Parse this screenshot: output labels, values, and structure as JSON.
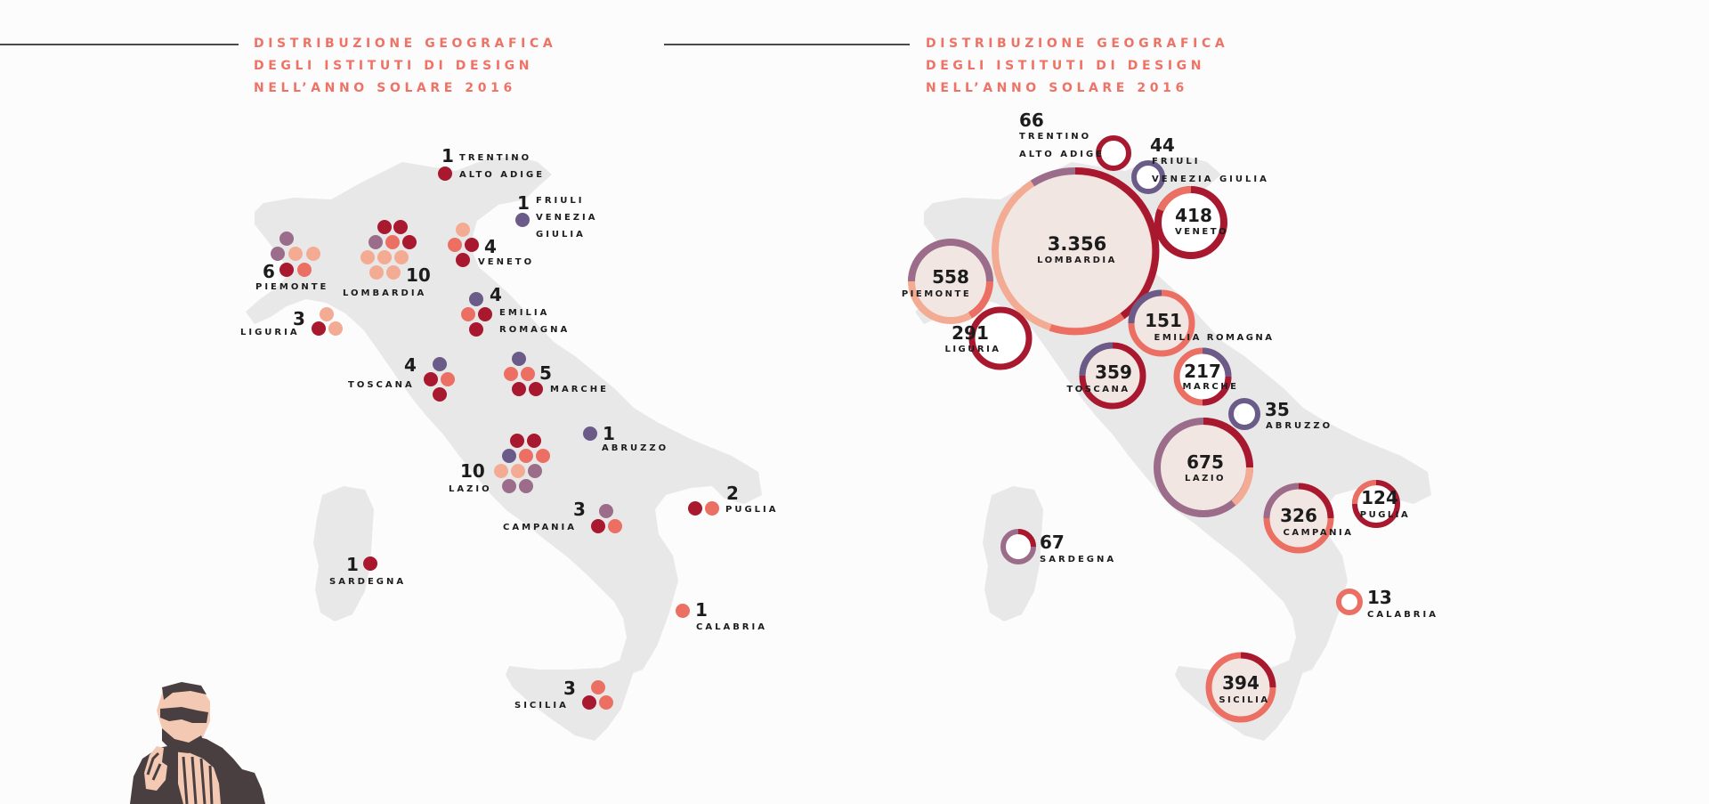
{
  "left_map": {
    "title_lines": [
      "DISTRIBUZIONE GEOGRAFICA",
      "DEGLI ISTITUTI DI DESIGN",
      "NELL’ANNO SOLARE 2016"
    ],
    "regions": [
      {
        "id": "trentino",
        "count": "1",
        "label_lines": [
          "TRENTINO",
          "ALTO ADIGE"
        ]
      },
      {
        "id": "friuli",
        "count": "1",
        "label_lines": [
          "FRIULI",
          "VENEZIA",
          "GIULIA"
        ]
      },
      {
        "id": "piemonte",
        "count": "6",
        "label_lines": [
          "PIEMONTE"
        ]
      },
      {
        "id": "lombardia",
        "count": "10",
        "label_lines": [
          "LOMBARDIA"
        ]
      },
      {
        "id": "veneto",
        "count": "4",
        "label_lines": [
          "VENETO"
        ]
      },
      {
        "id": "liguria",
        "count": "3",
        "label_lines": [
          "LIGURIA"
        ]
      },
      {
        "id": "emilia",
        "count": "4",
        "label_lines": [
          "EMILIA",
          "ROMAGNA"
        ]
      },
      {
        "id": "toscana",
        "count": "4",
        "label_lines": [
          "TOSCANA"
        ]
      },
      {
        "id": "marche",
        "count": "5",
        "label_lines": [
          "MARCHE"
        ]
      },
      {
        "id": "abruzzo",
        "count": "1",
        "label_lines": [
          "ABRUZZO"
        ]
      },
      {
        "id": "lazio",
        "count": "10",
        "label_lines": [
          "LAZIO"
        ]
      },
      {
        "id": "puglia",
        "count": "2",
        "label_lines": [
          "PUGLIA"
        ]
      },
      {
        "id": "campania",
        "count": "3",
        "label_lines": [
          "CAMPANIA"
        ]
      },
      {
        "id": "sardegna",
        "count": "1",
        "label_lines": [
          "SARDEGNA"
        ]
      },
      {
        "id": "calabria",
        "count": "1",
        "label_lines": [
          "CALABRIA"
        ]
      },
      {
        "id": "sicilia",
        "count": "3",
        "label_lines": [
          "SICILIA"
        ]
      }
    ]
  },
  "right_map": {
    "title_lines": [
      "DISTRIBUZIONE GEOGRAFICA",
      "DEGLI ISTITUTI DI DESIGN",
      "NELL’ANNO SOLARE 2016"
    ],
    "regions": [
      {
        "id": "trentino",
        "value": "66",
        "label_lines": [
          "TRENTINO",
          "ALTO ADIGE"
        ]
      },
      {
        "id": "friuli",
        "value": "44",
        "label_lines": [
          "FRIULI",
          "VENEZIA GIULIA"
        ]
      },
      {
        "id": "lombardia",
        "value": "3.356",
        "label_lines": [
          "LOMBARDIA"
        ]
      },
      {
        "id": "veneto",
        "value": "418",
        "label_lines": [
          "VENETO"
        ]
      },
      {
        "id": "piemonte",
        "value": "558",
        "label_lines": [
          "PIEMONTE"
        ]
      },
      {
        "id": "liguria",
        "value": "291",
        "label_lines": [
          "LIGURIA"
        ]
      },
      {
        "id": "emilia",
        "value": "151",
        "label_lines": [
          "EMILIA ROMAGNA"
        ]
      },
      {
        "id": "toscana",
        "value": "359",
        "label_lines": [
          "TOSCANA"
        ]
      },
      {
        "id": "marche",
        "value": "217",
        "label_lines": [
          "MARCHE"
        ]
      },
      {
        "id": "abruzzo",
        "value": "35",
        "label_lines": [
          "ABRUZZO"
        ]
      },
      {
        "id": "lazio",
        "value": "675",
        "label_lines": [
          "LAZIO"
        ]
      },
      {
        "id": "sardegna",
        "value": "67",
        "label_lines": [
          "SARDEGNA"
        ]
      },
      {
        "id": "campania",
        "value": "326",
        "label_lines": [
          "CAMPANIA"
        ]
      },
      {
        "id": "puglia",
        "value": "124",
        "label_lines": [
          "PUGLIA"
        ]
      },
      {
        "id": "calabria",
        "value": "13",
        "label_lines": [
          "CALABRIA"
        ]
      },
      {
        "id": "sicilia",
        "value": "394",
        "label_lines": [
          "SICILIA"
        ]
      }
    ]
  },
  "colors": {
    "map_fill": "#e9e8e8",
    "title": "#ee7366",
    "dark_red": "#a8182e",
    "coral": "#ec6f63",
    "peach": "#f4ab93",
    "purple": "#6b5b88",
    "mauve": "#9b6d8a",
    "bubble_fill": "#f2e6e3",
    "text": "#1c1c1c"
  },
  "illustration": {
    "icon": "man-with-glasses-gesturing-illustration"
  }
}
